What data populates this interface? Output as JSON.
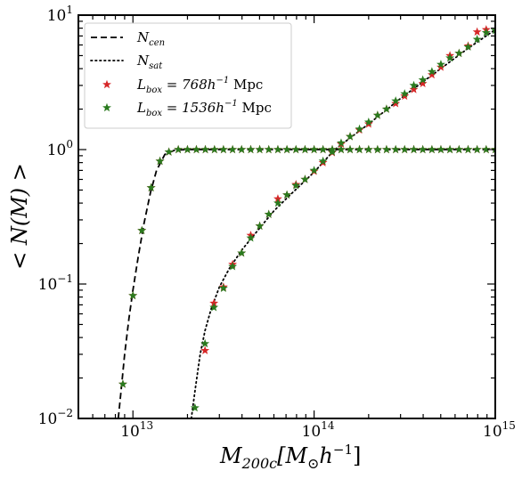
{
  "chart_data": {
    "type": "scatter",
    "title": "",
    "xlabel": {
      "main": "M",
      "sub": "200c",
      "rest_open": "[M",
      "sun_sub": "⊙",
      "h": "h",
      "exp": "−1",
      "close": "]"
    },
    "ylabel": "< N(M) >",
    "xscale": "log",
    "yscale": "log",
    "xlim": [
      5000000000000.0,
      1000000000000000.0
    ],
    "ylim": [
      0.01,
      10
    ],
    "x_tick_labels": [
      {
        "value": 10000000000000.0,
        "base": "10",
        "exp": "13"
      },
      {
        "value": 100000000000000.0,
        "base": "10",
        "exp": "14"
      },
      {
        "value": 1000000000000000.0,
        "base": "10",
        "exp": "15"
      }
    ],
    "y_tick_labels": [
      {
        "value": 0.01,
        "base": "10",
        "exp": "−2"
      },
      {
        "value": 0.1,
        "base": "10",
        "exp": "−1"
      },
      {
        "value": 1,
        "base": "10",
        "exp": "0"
      },
      {
        "value": 10,
        "base": "10",
        "exp": "1"
      }
    ],
    "legend_position": "top-left",
    "series": [
      {
        "name": "N_cen",
        "label_main": "N",
        "label_sub": "cen",
        "style": "dashed",
        "color": "#000000",
        "x": [
          8300000000000.0,
          8600000000000.0,
          9000000000000.0,
          9500000000000.0,
          10000000000000.0,
          10700000000000.0,
          11500000000000.0,
          12500000000000.0,
          13500000000000.0,
          15000000000000.0,
          17000000000000.0,
          20000000000000.0,
          30000000000000.0,
          100000000000000.0,
          1000000000000000.0
        ],
        "y": [
          0.01,
          0.016,
          0.03,
          0.055,
          0.09,
          0.16,
          0.28,
          0.48,
          0.7,
          0.92,
          0.99,
          1.0,
          1.0,
          1.0,
          1.0
        ]
      },
      {
        "name": "N_sat",
        "label_main": "N",
        "label_sub": "sat",
        "style": "dotted",
        "color": "#000000",
        "x": [
          21000000000000.0,
          22000000000000.0,
          23500000000000.0,
          25000000000000.0,
          27000000000000.0,
          30000000000000.0,
          34000000000000.0,
          40000000000000.0,
          50000000000000.0,
          60000000000000.0,
          75000000000000.0,
          100000000000000.0,
          130000000000000.0,
          200000000000000.0,
          300000000000000.0,
          500000000000000.0,
          700000000000000.0,
          1000000000000000.0
        ],
        "y": [
          0.01,
          0.016,
          0.03,
          0.045,
          0.065,
          0.095,
          0.13,
          0.18,
          0.26,
          0.35,
          0.47,
          0.68,
          1.0,
          1.55,
          2.4,
          4.0,
          5.6,
          7.8
        ]
      },
      {
        "name": "L_box = 768h^-1 Mpc",
        "label_main": "L",
        "label_sub": "box",
        "label_rest": " = 768h",
        "label_exp": "−1",
        "label_unit": " Mpc",
        "style": "markers",
        "marker": "star",
        "color": "#d62728",
        "x": [
          8800000000000.0,
          10000000000000.0,
          11200000000000.0,
          12600000000000.0,
          14100000000000.0,
          15800000000000.0,
          17800000000000.0,
          20000000000000.0,
          22400000000000.0,
          25100000000000.0,
          28200000000000.0,
          31600000000000.0,
          35500000000000.0,
          39800000000000.0,
          44700000000000.0,
          50100000000000.0,
          56200000000000.0,
          63100000000000.0,
          70800000000000.0,
          79400000000000.0,
          89100000000000.0,
          100000000000000.0,
          112000000000000.0,
          126000000000000.0,
          141000000000000.0,
          158000000000000.0,
          178000000000000.0,
          200000000000000.0,
          224000000000000.0,
          251000000000000.0,
          282000000000000.0,
          316000000000000.0,
          355000000000000.0,
          398000000000000.0,
          447000000000000.0,
          501000000000000.0,
          562000000000000.0,
          631000000000000.0,
          708000000000000.0,
          794000000000000.0,
          891000000000000.0,
          1000000000000000.0
        ],
        "y_cen": [
          0.018,
          0.082,
          0.25,
          0.52,
          0.82,
          0.96,
          1,
          1,
          1,
          1,
          1,
          1,
          1,
          1,
          1,
          1,
          1,
          1,
          1,
          1,
          1,
          1,
          1,
          1,
          1,
          1,
          1,
          1,
          1,
          1,
          1,
          1,
          1,
          1,
          1,
          1,
          1,
          1,
          1,
          1,
          1,
          1
        ],
        "sat_x": [
          25000000000000.0,
          28000000000000.0,
          31600000000000.0,
          35500000000000.0,
          39800000000000.0,
          44700000000000.0,
          50100000000000.0,
          56200000000000.0,
          63100000000000.0,
          70800000000000.0,
          79400000000000.0,
          89100000000000.0,
          100000000000000.0,
          112000000000000.0,
          126000000000000.0,
          141000000000000.0,
          158000000000000.0,
          178000000000000.0,
          200000000000000.0,
          224000000000000.0,
          251000000000000.0,
          282000000000000.0,
          316000000000000.0,
          355000000000000.0,
          398000000000000.0,
          447000000000000.0,
          501000000000000.0,
          562000000000000.0,
          631000000000000.0,
          708000000000000.0,
          794000000000000.0,
          891000000000000.0
        ],
        "sat_y": [
          0.032,
          0.072,
          0.095,
          0.14,
          0.17,
          0.23,
          0.27,
          0.33,
          0.43,
          0.46,
          0.55,
          0.6,
          0.69,
          0.8,
          0.95,
          1.1,
          1.25,
          1.4,
          1.55,
          1.8,
          2.0,
          2.2,
          2.5,
          2.8,
          3.1,
          3.6,
          4.1,
          5.0,
          5.2,
          5.9,
          7.5,
          7.8
        ]
      },
      {
        "name": "L_box = 1536h^-1 Mpc",
        "label_main": "L",
        "label_sub": "box",
        "label_rest": " = 1536h",
        "label_exp": "−1",
        "label_unit": " Mpc",
        "style": "markers",
        "marker": "star",
        "color": "#2a7a1e",
        "x": [
          8800000000000.0,
          10000000000000.0,
          11200000000000.0,
          12600000000000.0,
          14100000000000.0,
          15800000000000.0,
          17800000000000.0,
          20000000000000.0,
          22400000000000.0,
          25100000000000.0,
          28200000000000.0,
          31600000000000.0,
          35500000000000.0,
          39800000000000.0,
          44700000000000.0,
          50100000000000.0,
          56200000000000.0,
          63100000000000.0,
          70800000000000.0,
          79400000000000.0,
          89100000000000.0,
          100000000000000.0,
          112000000000000.0,
          126000000000000.0,
          141000000000000.0,
          158000000000000.0,
          178000000000000.0,
          200000000000000.0,
          224000000000000.0,
          251000000000000.0,
          282000000000000.0,
          316000000000000.0,
          355000000000000.0,
          398000000000000.0,
          447000000000000.0,
          501000000000000.0,
          562000000000000.0,
          631000000000000.0,
          708000000000000.0,
          794000000000000.0,
          891000000000000.0,
          1000000000000000.0
        ],
        "y_cen": [
          0.018,
          0.082,
          0.25,
          0.52,
          0.82,
          0.96,
          1,
          1,
          1,
          1,
          1,
          1,
          1,
          1,
          1,
          1,
          1,
          1,
          1,
          1,
          1,
          1,
          1,
          1,
          1,
          1,
          1,
          1,
          1,
          1,
          1,
          1,
          1,
          1,
          1,
          1,
          1,
          1,
          1,
          1,
          1,
          1
        ],
        "sat_x": [
          22000000000000.0,
          25000000000000.0,
          28000000000000.0,
          31600000000000.0,
          35500000000000.0,
          39800000000000.0,
          44700000000000.0,
          50100000000000.0,
          56200000000000.0,
          63100000000000.0,
          70800000000000.0,
          79400000000000.0,
          89100000000000.0,
          100000000000000.0,
          112000000000000.0,
          126000000000000.0,
          141000000000000.0,
          158000000000000.0,
          178000000000000.0,
          200000000000000.0,
          224000000000000.0,
          251000000000000.0,
          282000000000000.0,
          316000000000000.0,
          355000000000000.0,
          398000000000000.0,
          447000000000000.0,
          501000000000000.0,
          562000000000000.0,
          631000000000000.0,
          708000000000000.0,
          794000000000000.0,
          891000000000000.0,
          1000000000000000.0
        ],
        "sat_y": [
          0.012,
          0.036,
          0.067,
          0.093,
          0.135,
          0.17,
          0.22,
          0.27,
          0.33,
          0.4,
          0.46,
          0.54,
          0.6,
          0.7,
          0.82,
          0.96,
          1.12,
          1.25,
          1.42,
          1.6,
          1.8,
          2.0,
          2.3,
          2.6,
          3.0,
          3.3,
          3.8,
          4.3,
          4.8,
          5.2,
          5.8,
          6.6,
          7.4,
          7.7
        ]
      }
    ]
  }
}
